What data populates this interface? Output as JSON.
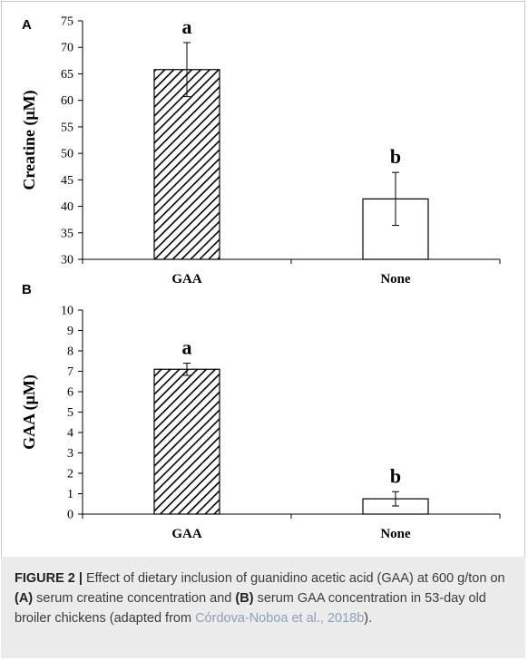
{
  "chart_data": [
    {
      "type": "bar",
      "panel_letter": "A",
      "categories": [
        "GAA",
        "None"
      ],
      "values": [
        65.8,
        41.4
      ],
      "errors": [
        5.1,
        5.0
      ],
      "significance_letters": [
        "a",
        "b"
      ],
      "bar_patterns": [
        "diagonal-hatch",
        "none"
      ],
      "title": "",
      "xlabel": "",
      "ylabel": "Creatine (μM)",
      "ylim": [
        30,
        75
      ],
      "yticks": [
        30,
        35,
        40,
        45,
        50,
        55,
        60,
        65,
        70,
        75
      ],
      "grid": false,
      "legend": "none"
    },
    {
      "type": "bar",
      "panel_letter": "B",
      "categories": [
        "GAA",
        "None"
      ],
      "values": [
        7.1,
        0.75
      ],
      "errors": [
        0.3,
        0.35
      ],
      "significance_letters": [
        "a",
        "b"
      ],
      "bar_patterns": [
        "diagonal-hatch",
        "none"
      ],
      "title": "",
      "xlabel": "",
      "ylabel": "GAA (μM)",
      "ylim": [
        0,
        10
      ],
      "yticks": [
        0,
        1,
        2,
        3,
        4,
        5,
        6,
        7,
        8,
        9,
        10
      ],
      "grid": false,
      "legend": "none"
    }
  ],
  "caption": {
    "label": "FIGURE 2 |",
    "part1": " Effect of dietary inclusion of guanidino acetic acid (GAA) at 600 g/ton on ",
    "panel_a": "(A)",
    "part2": " serum creatine concentration and ",
    "panel_b": "(B)",
    "part3": " serum GAA concentration in 53-day old broiler chickens (adapted from ",
    "citation": "Córdova-Noboa et al., 2018b",
    "part4": ")."
  },
  "colors": {
    "bar_outline": "#000000",
    "hatch": "#000000",
    "caption_background": "#ececec",
    "caption_text": "#3b3b3b",
    "citation_link": "#8aa0b8"
  }
}
